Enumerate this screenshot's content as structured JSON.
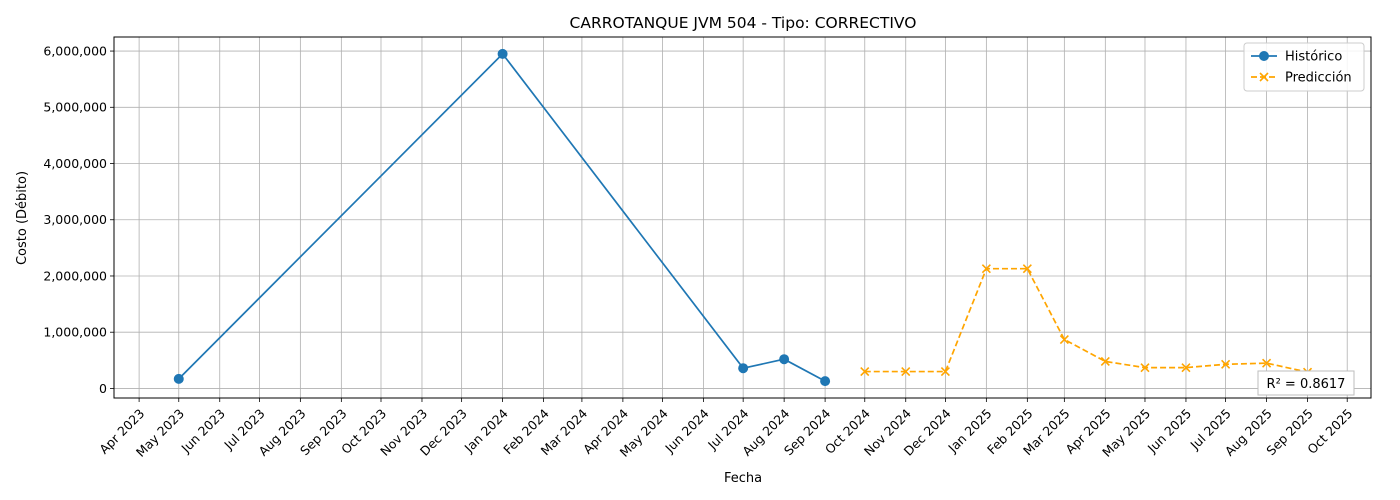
{
  "chart_data": {
    "type": "line",
    "title": "CARROTANQUE JVM 504 - Tipo: CORRECTIVO",
    "xlabel": "Fecha",
    "ylabel": "Costo (Débito)",
    "x_ticks": [
      "Apr 2023",
      "May 2023",
      "Jun 2023",
      "Jul 2023",
      "Aug 2023",
      "Sep 2023",
      "Oct 2023",
      "Nov 2023",
      "Dec 2023",
      "Jan 2024",
      "Feb 2024",
      "Mar 2024",
      "Apr 2024",
      "May 2024",
      "Jun 2024",
      "Jul 2024",
      "Aug 2024",
      "Sep 2024",
      "Oct 2024",
      "Nov 2024",
      "Dec 2024",
      "Jan 2025",
      "Feb 2025",
      "Mar 2025",
      "Apr 2025",
      "May 2025",
      "Jun 2025",
      "Jul 2025",
      "Aug 2025",
      "Sep 2025",
      "Oct 2025"
    ],
    "y_ticks": [
      0,
      1000000,
      2000000,
      3000000,
      4000000,
      5000000,
      6000000
    ],
    "y_tick_labels": [
      "0",
      "1,000,000",
      "2,000,000",
      "3,000,000",
      "4,000,000",
      "5,000,000",
      "6,000,000"
    ],
    "ylim": [
      -170000,
      6250000
    ],
    "xlim": [
      "2023-03-13",
      "2025-10-19"
    ],
    "grid": true,
    "legend_position": "top-right",
    "series": [
      {
        "name": "Histórico",
        "color": "#1f77b4",
        "line_style": "solid",
        "marker": "circle",
        "points": [
          {
            "x": "2023-05-01",
            "y": 170000
          },
          {
            "x": "2024-01-01",
            "y": 5950000
          },
          {
            "x": "2024-07-01",
            "y": 360000
          },
          {
            "x": "2024-08-01",
            "y": 520000
          },
          {
            "x": "2024-09-01",
            "y": 130000
          }
        ]
      },
      {
        "name": "Predicción",
        "color": "#ffa500",
        "line_style": "dashed",
        "marker": "x",
        "points": [
          {
            "x": "2024-10-01",
            "y": 300000
          },
          {
            "x": "2024-11-01",
            "y": 300000
          },
          {
            "x": "2024-12-01",
            "y": 300000
          },
          {
            "x": "2025-01-01",
            "y": 2130000
          },
          {
            "x": "2025-02-01",
            "y": 2130000
          },
          {
            "x": "2025-03-01",
            "y": 870000
          },
          {
            "x": "2025-04-01",
            "y": 480000
          },
          {
            "x": "2025-05-01",
            "y": 370000
          },
          {
            "x": "2025-06-01",
            "y": 370000
          },
          {
            "x": "2025-07-01",
            "y": 430000
          },
          {
            "x": "2025-08-01",
            "y": 450000
          },
          {
            "x": "2025-09-01",
            "y": 290000
          }
        ]
      }
    ],
    "annotation": "R² = 0.8617"
  }
}
